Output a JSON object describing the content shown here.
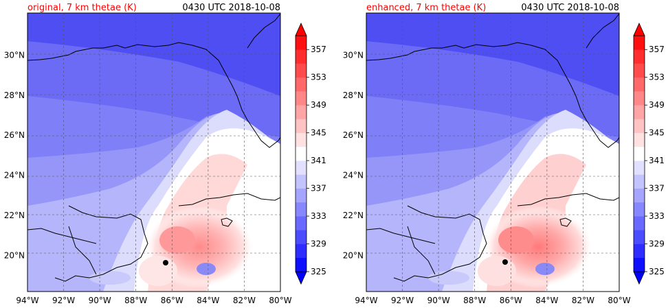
{
  "figure": {
    "panels": [
      {
        "title_left": "original, 7 km thetae (K)",
        "title_right": "0430 UTC 2018-10-08"
      },
      {
        "title_left": "enhanced, 7 km thetae (K)",
        "title_right": "0430 UTC 2018-10-08"
      }
    ]
  },
  "chart_data": [
    {
      "type": "heatmap",
      "title": "original, 7 km thetae (K)",
      "time_label": "0430 UTC 2018-10-08",
      "variable": "equivalent potential temperature at 7 km",
      "units": "K",
      "xlim": [
        -94,
        -80
      ],
      "ylim": [
        18.2,
        32.1
      ],
      "x_ticks": [
        "94°W",
        "92°W",
        "90°W",
        "88°W",
        "86°W",
        "84°W",
        "82°W",
        "80°W"
      ],
      "y_ticks": [
        "20°N",
        "22°N",
        "24°N",
        "26°N",
        "28°N",
        "30°N"
      ],
      "grid": true,
      "colorbar": {
        "levels": [
          325,
          327,
          329,
          331,
          333,
          335,
          337,
          339,
          341,
          343,
          345,
          347,
          349,
          351,
          353,
          355,
          357,
          359
        ],
        "tick_labels": [
          "325",
          "329",
          "333",
          "337",
          "341",
          "345",
          "349",
          "353",
          "357"
        ],
        "extend": "both",
        "colormap": "bwr"
      },
      "marker": {
        "lon": -86.4,
        "lat": 19.5,
        "color": "#000000"
      }
    },
    {
      "type": "heatmap",
      "title": "enhanced, 7 km thetae (K)",
      "time_label": "0430 UTC 2018-10-08",
      "variable": "equivalent potential temperature at 7 km",
      "units": "K",
      "xlim": [
        -94,
        -80
      ],
      "ylim": [
        18.2,
        32.1
      ],
      "x_ticks": [
        "94°W",
        "92°W",
        "90°W",
        "88°W",
        "86°W",
        "84°W",
        "82°W",
        "80°W"
      ],
      "y_ticks": [
        "20°N",
        "22°N",
        "24°N",
        "26°N",
        "28°N",
        "30°N"
      ],
      "grid": true,
      "colorbar": {
        "levels": [
          325,
          327,
          329,
          331,
          333,
          335,
          337,
          339,
          341,
          343,
          345,
          347,
          349,
          351,
          353,
          355,
          357,
          359
        ],
        "tick_labels": [
          "325",
          "329",
          "333",
          "337",
          "341",
          "345",
          "349",
          "353",
          "357"
        ],
        "extend": "both",
        "colormap": "bwr"
      },
      "marker": {
        "lon": -86.2,
        "lat": 19.5,
        "color": "#000000"
      }
    }
  ]
}
